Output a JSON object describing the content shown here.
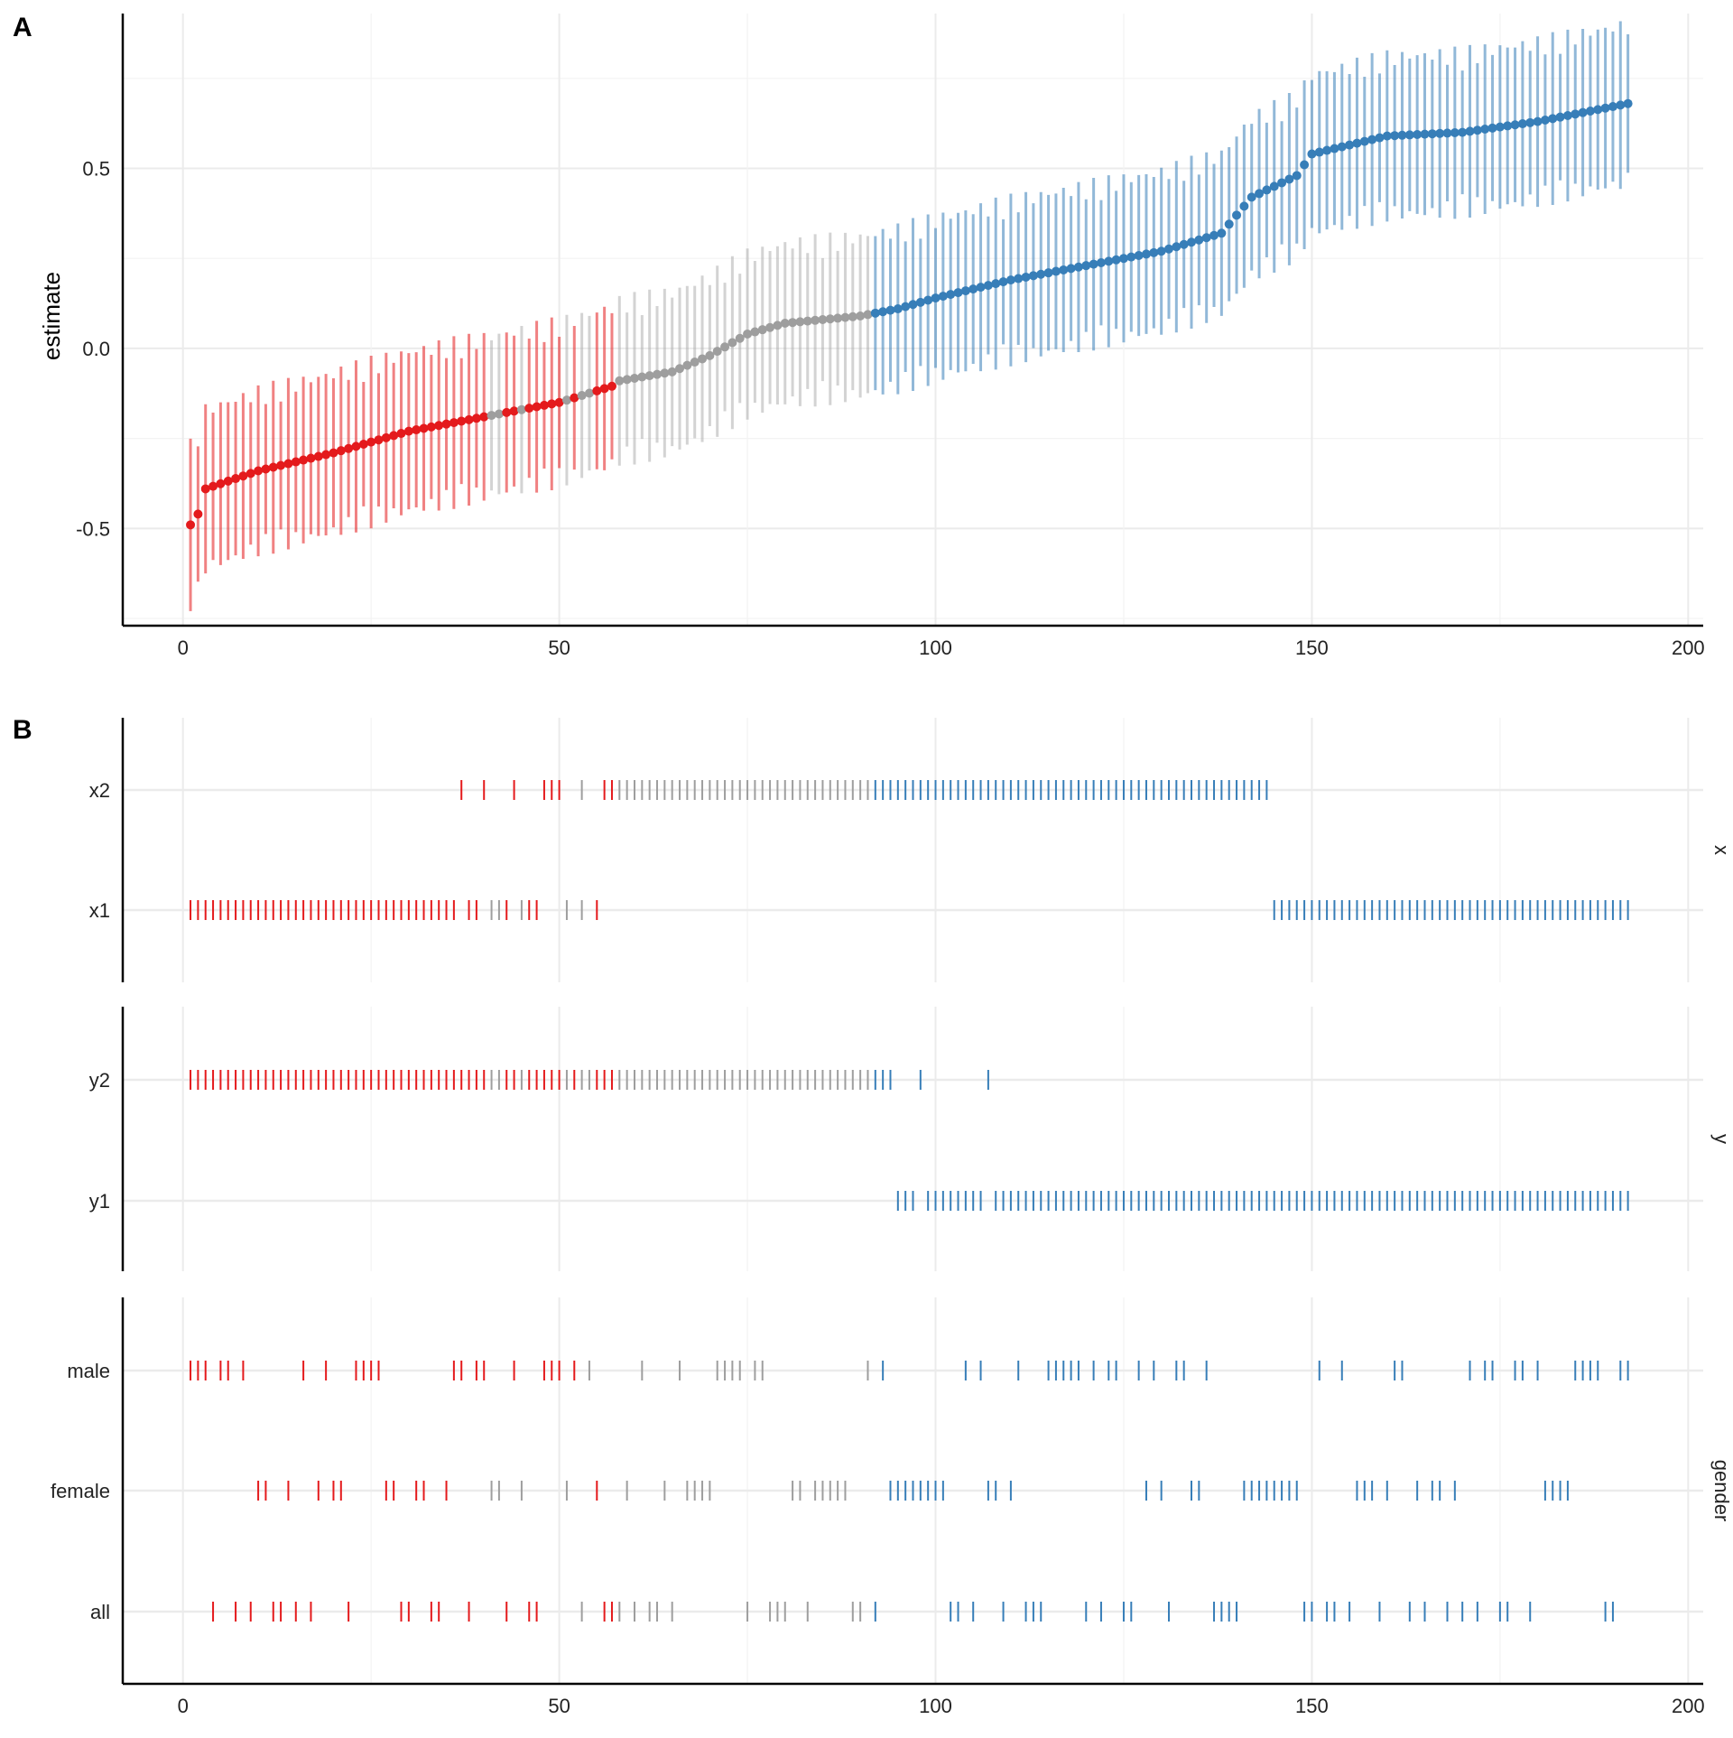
{
  "colors": {
    "negative": "#e41a1c",
    "null": "#9e9e9e",
    "positive": "#377eb8",
    "grid": "#ebebeb",
    "axis": "#000000"
  },
  "panel_a": {
    "tag": "A",
    "ylabel": "estimate"
  },
  "panel_b": {
    "tag": "B"
  },
  "chart_data": [
    {
      "type": "scatter",
      "tag": "A",
      "description_kind": "specification curve: sorted estimates with confidence intervals",
      "xlabel": "",
      "ylabel": "estimate",
      "xlim": [
        -8,
        202
      ],
      "ylim": [
        -0.77,
        0.93
      ],
      "x_ticks": [
        0,
        50,
        100,
        150,
        200
      ],
      "x_tick_labels": [
        "0",
        "50",
        "100",
        "150",
        "200"
      ],
      "y_ticks": [
        -0.5,
        0.0,
        0.5
      ],
      "y_tick_labels": [
        "-0.5",
        "0.0",
        "0.5"
      ],
      "grid": true,
      "legend": "none",
      "series": [
        {
          "group": "negative",
          "x_range": [
            1,
            57
          ],
          "x_null_within": [
            41,
            42,
            45,
            51,
            53,
            54
          ],
          "estimate_at": {
            "1": -0.49,
            "2": -0.46,
            "3": -0.39,
            "10": -0.34,
            "20": -0.29,
            "30": -0.23,
            "40": -0.19,
            "50": -0.15,
            "57": -0.105
          }
        },
        {
          "group": "null",
          "x_range": [
            41,
            100
          ],
          "estimate_at": {
            "58": -0.09,
            "65": -0.065,
            "70": -0.02,
            "75": 0.04,
            "80": 0.07,
            "90": 0.09,
            "95": 0.11,
            "100": 0.13
          }
        },
        {
          "group": "positive",
          "x_range": [
            92,
            192
          ],
          "estimate_at": {
            "100": 0.14,
            "110": 0.19,
            "120": 0.23,
            "130": 0.27,
            "138": 0.32,
            "142": 0.42,
            "148": 0.48,
            "150": 0.54,
            "160": 0.59,
            "170": 0.6,
            "180": 0.63,
            "192": 0.68
          }
        },
        {
          "ci_half_width_approx": 0.2
        }
      ]
    },
    {
      "type": "scatter",
      "tag": "B",
      "description_kind": "specification indicators (tick marks per specification)",
      "xlim": [
        -8,
        202
      ],
      "x_ticks": [
        0,
        50,
        100,
        150,
        200
      ],
      "x_tick_labels": [
        "0",
        "50",
        "100",
        "150",
        "200"
      ],
      "grid": true,
      "facets": [
        {
          "strip": "x",
          "rows": [
            {
              "label": "x2",
              "positions": [
                37,
                40,
                44,
                48,
                49,
                50,
                53,
                56,
                57,
                58,
                59,
                60,
                61,
                62,
                63,
                64,
                65,
                66,
                67,
                68,
                69,
                70,
                71,
                72,
                73,
                74,
                75,
                76,
                77,
                78,
                79,
                80,
                81,
                82,
                83,
                84,
                85,
                86,
                87,
                88,
                89,
                90,
                91,
                92,
                93,
                94,
                95,
                96,
                97,
                98,
                99,
                100,
                101,
                102,
                103,
                104,
                105,
                106,
                107,
                108,
                109,
                110,
                111,
                112,
                113,
                114,
                115,
                116,
                117,
                118,
                119,
                120,
                121,
                122,
                123,
                124,
                125,
                126,
                127,
                128,
                129,
                130,
                131,
                132,
                133,
                134,
                135,
                136,
                137,
                138,
                139,
                140,
                141,
                142,
                143,
                144
              ]
            },
            {
              "label": "x1",
              "positions": [
                1,
                2,
                3,
                4,
                5,
                6,
                7,
                8,
                9,
                10,
                11,
                12,
                13,
                14,
                15,
                16,
                17,
                18,
                19,
                20,
                21,
                22,
                23,
                24,
                25,
                26,
                27,
                28,
                29,
                30,
                31,
                32,
                33,
                34,
                35,
                36,
                38,
                39,
                41,
                42,
                43,
                45,
                46,
                47,
                51,
                53,
                55,
                145,
                146,
                147,
                148,
                149,
                150,
                151,
                152,
                153,
                154,
                155,
                156,
                157,
                158,
                159,
                160,
                161,
                162,
                163,
                164,
                165,
                166,
                167,
                168,
                169,
                170,
                171,
                172,
                173,
                174,
                175,
                176,
                177,
                178,
                179,
                180,
                181,
                182,
                183,
                184,
                185,
                186,
                187,
                188,
                189,
                190,
                191,
                192
              ]
            }
          ]
        },
        {
          "strip": "y",
          "rows": [
            {
              "label": "y2",
              "positions": [
                1,
                2,
                3,
                4,
                5,
                6,
                7,
                8,
                9,
                10,
                11,
                12,
                13,
                14,
                15,
                16,
                17,
                18,
                19,
                20,
                21,
                22,
                23,
                24,
                25,
                26,
                27,
                28,
                29,
                30,
                31,
                32,
                33,
                34,
                35,
                36,
                37,
                38,
                39,
                40,
                41,
                42,
                43,
                44,
                45,
                46,
                47,
                48,
                49,
                50,
                51,
                52,
                53,
                54,
                55,
                56,
                57,
                58,
                59,
                60,
                61,
                62,
                63,
                64,
                65,
                66,
                67,
                68,
                69,
                70,
                71,
                72,
                73,
                74,
                75,
                76,
                77,
                78,
                79,
                80,
                81,
                82,
                83,
                84,
                85,
                86,
                87,
                88,
                89,
                90,
                91,
                92,
                93,
                94,
                98,
                107
              ]
            },
            {
              "label": "y1",
              "positions": [
                95,
                96,
                97,
                99,
                100,
                101,
                102,
                103,
                104,
                105,
                106,
                108,
                109,
                110,
                111,
                112,
                113,
                114,
                115,
                116,
                117,
                118,
                119,
                120,
                121,
                122,
                123,
                124,
                125,
                126,
                127,
                128,
                129,
                130,
                131,
                132,
                133,
                134,
                135,
                136,
                137,
                138,
                139,
                140,
                141,
                142,
                143,
                144,
                145,
                146,
                147,
                148,
                149,
                150,
                151,
                152,
                153,
                154,
                155,
                156,
                157,
                158,
                159,
                160,
                161,
                162,
                163,
                164,
                165,
                166,
                167,
                168,
                169,
                170,
                171,
                172,
                173,
                174,
                175,
                176,
                177,
                178,
                179,
                180,
                181,
                182,
                183,
                184,
                185,
                186,
                187,
                188,
                189,
                190,
                191,
                192
              ]
            }
          ]
        },
        {
          "strip": "gender",
          "rows": [
            {
              "label": "male",
              "positions": [
                1,
                2,
                3,
                5,
                6,
                8,
                16,
                19,
                23,
                24,
                25,
                26,
                36,
                37,
                39,
                40,
                44,
                48,
                49,
                50,
                52,
                54,
                61,
                66,
                71,
                72,
                73,
                74,
                76,
                77,
                91,
                93,
                104,
                106,
                111,
                115,
                116,
                117,
                118,
                119,
                121,
                123,
                124,
                127,
                129,
                132,
                133,
                136,
                151,
                154,
                161,
                162,
                171,
                173,
                174,
                177,
                178,
                180,
                185,
                186,
                187,
                188,
                191,
                192
              ]
            },
            {
              "label": "female",
              "positions": [
                10,
                11,
                14,
                18,
                20,
                21,
                27,
                28,
                31,
                32,
                35,
                41,
                42,
                45,
                51,
                55,
                59,
                64,
                67,
                68,
                69,
                70,
                81,
                82,
                84,
                85,
                86,
                87,
                88,
                94,
                95,
                96,
                97,
                98,
                99,
                100,
                101,
                107,
                108,
                110,
                128,
                130,
                134,
                135,
                141,
                142,
                143,
                144,
                145,
                146,
                147,
                148,
                156,
                157,
                158,
                160,
                164,
                166,
                167,
                169,
                181,
                182,
                183,
                184
              ]
            },
            {
              "label": "all",
              "positions": [
                4,
                7,
                9,
                12,
                13,
                15,
                17,
                22,
                29,
                30,
                33,
                34,
                38,
                43,
                46,
                47,
                53,
                56,
                57,
                58,
                60,
                62,
                63,
                65,
                75,
                78,
                79,
                80,
                83,
                89,
                90,
                92,
                102,
                103,
                105,
                109,
                112,
                113,
                114,
                120,
                122,
                125,
                126,
                131,
                137,
                138,
                139,
                140,
                149,
                150,
                152,
                153,
                155,
                159,
                163,
                165,
                168,
                170,
                172,
                175,
                176,
                179,
                189,
                190
              ]
            }
          ]
        }
      ]
    }
  ]
}
